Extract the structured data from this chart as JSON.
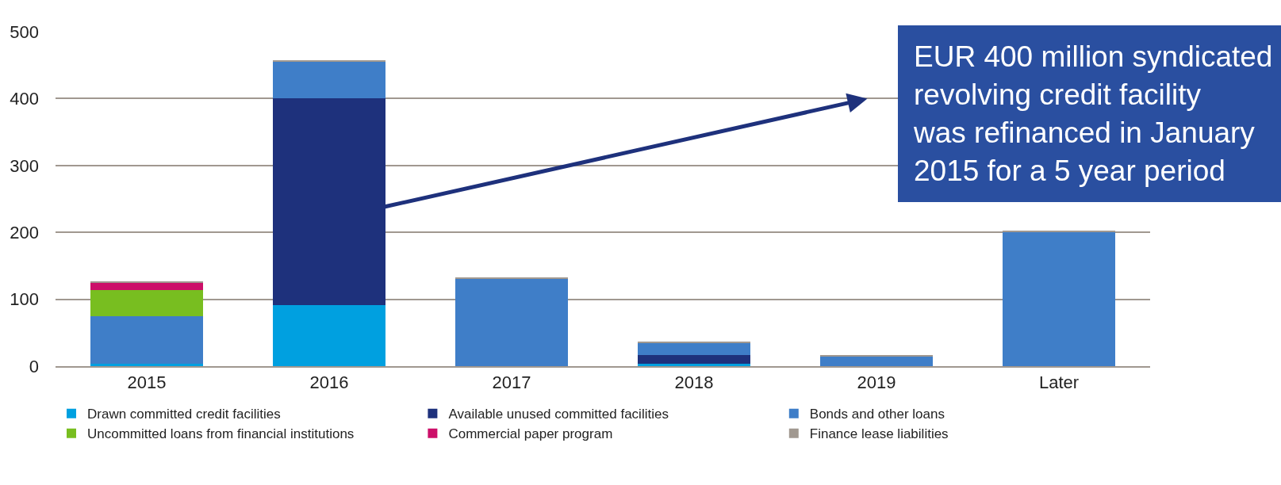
{
  "chart_data": {
    "type": "bar",
    "stacked": true,
    "categories": [
      "2015",
      "2016",
      "2017",
      "2018",
      "2019",
      "Later"
    ],
    "series": [
      {
        "name": "Drawn committed credit facilities",
        "color": "#00a0e0",
        "values": [
          3,
          91,
          0,
          4,
          0,
          0
        ]
      },
      {
        "name": "Available unused committed facilities",
        "color": "#1e317c",
        "values": [
          0,
          309,
          0,
          13,
          0,
          0
        ]
      },
      {
        "name": "Bonds and other loans",
        "color": "#3f7ec8",
        "values": [
          72,
          56,
          131,
          18,
          15,
          200
        ]
      },
      {
        "name": "Uncommitted loans from financial institutions",
        "color": "#78be20",
        "values": [
          39,
          0,
          0,
          0,
          0,
          0
        ]
      },
      {
        "name": "Commercial paper program",
        "color": "#cc0f69",
        "values": [
          11,
          0,
          0,
          0,
          0,
          0
        ]
      },
      {
        "name": "Finance lease liabilities",
        "color": "#a09890",
        "values": [
          1,
          1,
          1,
          1,
          1,
          3
        ]
      }
    ],
    "ylim": [
      0,
      500
    ],
    "yticks": [
      0,
      100,
      200,
      300,
      400,
      500
    ],
    "grid": "y",
    "legend": "bottom",
    "annotations": [
      "EUR 400 million syndicated revolving credit facility was refinanced in January 2015 for a 5 year period"
    ]
  }
}
